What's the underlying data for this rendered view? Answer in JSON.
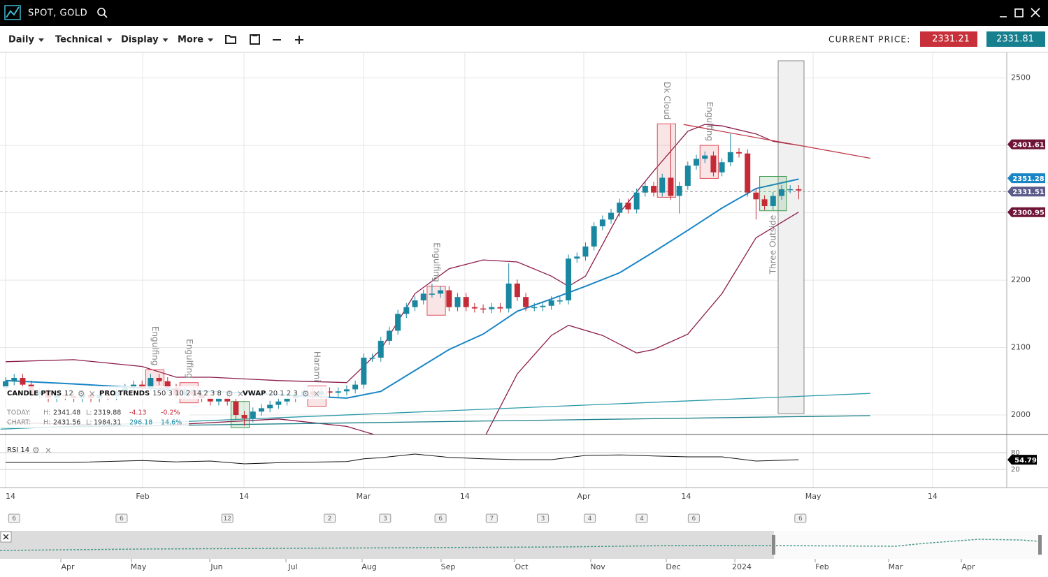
{
  "app": {
    "title": "SPOT, GOLD"
  },
  "toolbar": {
    "menus": [
      "Daily",
      "Technical",
      "Display",
      "More"
    ],
    "current_price_label": "CURRENT PRICE:",
    "bid": "2331.21",
    "ask": "2331.81"
  },
  "legend": {
    "indicators": [
      {
        "name": "CANDLE PTNS",
        "params": "12"
      },
      {
        "name": "PRO TRENDS",
        "params": "150 3 10 2 14 2 3 8"
      },
      {
        "name": "VWAP",
        "params": "20 1 2 3"
      }
    ],
    "h_label": "H:",
    "l_label": "L:",
    "stats": [
      {
        "label": "TODAY:",
        "h": "2341.48",
        "l": "2319.88",
        "chg": "-4.13",
        "pct": "-0.2%"
      },
      {
        "label": "CHART:",
        "h": "2431.56",
        "l": "1984.31",
        "chg": "296.18",
        "pct": "14.6%"
      }
    ]
  },
  "chart_data": {
    "type": "candlestick",
    "open": [
      2040,
      2050,
      2055,
      2045,
      2030,
      2035,
      2025,
      2030,
      2028,
      2025,
      2030,
      2025,
      2030,
      2028,
      2035,
      2040,
      2045,
      2040,
      2055,
      2050,
      2040,
      2030,
      2035,
      2030,
      2025,
      2020,
      2025,
      2020,
      2000,
      1995,
      2005,
      2010,
      2015,
      2020,
      2025,
      2030,
      2035,
      2030,
      2035,
      2033,
      2035,
      2038,
      2045,
      2085,
      2085,
      2110,
      2125,
      2150,
      2160,
      2170,
      2180,
      2180,
      2185,
      2160,
      2175,
      2160,
      2158,
      2157,
      2160,
      2158,
      2195,
      2175,
      2160,
      2160,
      2162,
      2170,
      2170,
      2232,
      2235,
      2250,
      2280,
      2290,
      2300,
      2315,
      2305,
      2330,
      2340,
      2330,
      2352,
      2325,
      2340,
      2370,
      2380,
      2385,
      2360,
      2375,
      2390,
      2388,
      2330,
      2320,
      2310,
      2325,
      2335,
      2335
    ],
    "high": [
      2056,
      2061,
      2061,
      2051,
      2041,
      2041,
      2036,
      2036,
      2034,
      2036,
      2036,
      2036,
      2036,
      2041,
      2046,
      2051,
      2051,
      2061,
      2061,
      2056,
      2046,
      2041,
      2041,
      2036,
      2031,
      2031,
      2031,
      2026,
      2006,
      2011,
      2016,
      2021,
      2026,
      2031,
      2036,
      2041,
      2041,
      2041,
      2041,
      2041,
      2044,
      2051,
      2091,
      2091,
      2116,
      2131,
      2156,
      2166,
      2176,
      2186,
      2195,
      2191,
      2191,
      2181,
      2181,
      2166,
      2164,
      2166,
      2166,
      2225,
      2201,
      2181,
      2166,
      2168,
      2176,
      2176,
      2238,
      2241,
      2256,
      2286,
      2296,
      2306,
      2321,
      2321,
      2336,
      2346,
      2346,
      2358,
      2431,
      2346,
      2376,
      2386,
      2391,
      2391,
      2381,
      2417,
      2396,
      2394,
      2336,
      2326,
      2331,
      2341,
      2341,
      2341
    ],
    "low": [
      2034,
      2044,
      2039,
      2024,
      2024,
      2019,
      2019,
      2022,
      2019,
      2019,
      2019,
      2019,
      2022,
      2022,
      2029,
      2034,
      2034,
      2034,
      2044,
      2034,
      2024,
      2024,
      2024,
      2019,
      2014,
      2014,
      2014,
      1994,
      1984,
      1989,
      1999,
      2004,
      2009,
      2014,
      2019,
      2024,
      2024,
      2024,
      2027,
      2027,
      2029,
      2032,
      2039,
      2079,
      2079,
      2104,
      2119,
      2144,
      2154,
      2164,
      2174,
      2174,
      2154,
      2154,
      2154,
      2152,
      2151,
      2151,
      2152,
      2152,
      2169,
      2154,
      2154,
      2154,
      2156,
      2164,
      2164,
      2226,
      2229,
      2244,
      2274,
      2284,
      2294,
      2299,
      2299,
      2324,
      2324,
      2324,
      2319,
      2299,
      2334,
      2364,
      2374,
      2354,
      2354,
      2369,
      2382,
      2324,
      2290,
      2304,
      2304,
      2319,
      2329,
      2320
    ],
    "close": [
      2050,
      2055,
      2045,
      2030,
      2035,
      2025,
      2030,
      2028,
      2025,
      2030,
      2025,
      2030,
      2028,
      2035,
      2040,
      2045,
      2040,
      2055,
      2050,
      2040,
      2030,
      2035,
      2030,
      2025,
      2020,
      2025,
      2020,
      2000,
      1995,
      2005,
      2010,
      2015,
      2020,
      2025,
      2030,
      2035,
      2030,
      2035,
      2033,
      2035,
      2038,
      2045,
      2085,
      2085,
      2110,
      2125,
      2150,
      2160,
      2170,
      2180,
      2180,
      2185,
      2160,
      2175,
      2160,
      2158,
      2157,
      2160,
      2158,
      2195,
      2175,
      2160,
      2160,
      2162,
      2170,
      2170,
      2232,
      2235,
      2250,
      2280,
      2290,
      2300,
      2315,
      2305,
      2330,
      2340,
      2330,
      2352,
      2325,
      2340,
      2370,
      2380,
      2385,
      2360,
      2375,
      2390,
      2388,
      2330,
      2320,
      2310,
      2325,
      2335,
      2335,
      2333
    ],
    "up_color": "#1a87a0",
    "down_color": "#c42b37",
    "lines": [
      {
        "color": "#1a85c5",
        "x": [
          0,
          8,
          16,
          24,
          32,
          40,
          44,
          48,
          52,
          56,
          60,
          64,
          68,
          72,
          76,
          80,
          84,
          88,
          93
        ],
        "values": [
          2051,
          2046,
          2040,
          2035,
          2030,
          2025,
          2035,
          2066,
          2097,
          2120,
          2154,
          2172,
          2191,
          2211,
          2242,
          2274,
          2307,
          2336,
          2350
        ]
      },
      {
        "color": "#8b1a4a",
        "x": [
          0,
          8,
          16,
          20,
          24,
          32,
          40,
          44,
          48,
          52,
          56,
          60,
          64,
          66,
          68,
          72,
          76,
          80,
          82,
          84,
          88,
          90,
          93
        ],
        "values": [
          2079,
          2082,
          2072,
          2056,
          2056,
          2051,
          2048,
          2097,
          2180,
          2217,
          2230,
          2227,
          2206,
          2191,
          2206,
          2300,
          2362,
          2421,
          2431,
          2429,
          2417,
          2406,
          2400
        ]
      },
      {
        "color": "#8b1a4a",
        "x": [
          0,
          16,
          32,
          40,
          44,
          52,
          56,
          60,
          64,
          66,
          70,
          74,
          76,
          80,
          84,
          88,
          93
        ],
        "values": [
          1989,
          1983,
          1994,
          1983,
          1968,
          1942,
          1963,
          2061,
          2118,
          2133,
          2118,
          2092,
          2097,
          2120,
          2180,
          2263,
          2301
        ]
      },
      {
        "color": "#c0394a",
        "x": [
          79.5,
          101.4
        ],
        "values": [
          2431,
          2381
        ]
      },
      {
        "color": "#2a9aa8",
        "x": [
          -0.6,
          101.4
        ],
        "values": [
          1979,
          2032
        ]
      },
      {
        "color": "#1a7f8a",
        "x": [
          -0.6,
          101.4
        ],
        "values": [
          1981,
          1999
        ]
      }
    ],
    "patterns": [
      {
        "label": "Engulfing",
        "start": 17,
        "end": 18,
        "low": 2040,
        "high": 2067,
        "color": "#e0505a"
      },
      {
        "label": "Engulfing",
        "start": 21,
        "end": 22,
        "low": 2018,
        "high": 2048,
        "color": "#e0505a"
      },
      {
        "start": 27,
        "end": 28,
        "low": 1981,
        "high": 2020,
        "color": "#3a9a4a"
      },
      {
        "label": "Harami",
        "start": 36,
        "end": 37,
        "low": 2013,
        "high": 2043,
        "color": "#e0505a"
      },
      {
        "label": "Engulfing",
        "start": 50,
        "end": 51,
        "low": 2148,
        "high": 2191,
        "color": "#e0505a"
      },
      {
        "label": "Dk Cloud",
        "start": 77,
        "end": 78,
        "low": 2323,
        "high": 2432,
        "color": "#e0505a"
      },
      {
        "label": "Engulfing",
        "start": 82,
        "end": 83,
        "low": 2351,
        "high": 2400,
        "color": "#e0505a"
      },
      {
        "label": "Three Outside",
        "start": 89,
        "end": 91,
        "low": 2303,
        "high": 2354,
        "color": "#3a9a4a",
        "label_side": "below"
      }
    ],
    "price_tags": [
      {
        "value": 2401.61,
        "color": "#6e1436"
      },
      {
        "value": 2351.28,
        "color": "#1a85c5"
      },
      {
        "value": 2331.51,
        "color": "#5c5a8a"
      },
      {
        "value": 2300.95,
        "color": "#6e1436"
      }
    ],
    "xlim": [
      -0.66,
      117.4
    ],
    "xticks": [
      {
        "value": 0,
        "label": "14"
      },
      {
        "value": 16.07,
        "label": "Feb"
      },
      {
        "value": 27.95,
        "label": "14"
      },
      {
        "value": 41.97,
        "label": "Mar"
      },
      {
        "value": 53.85,
        "label": "14"
      },
      {
        "value": 67.8,
        "label": "Apr"
      },
      {
        "value": 79.8,
        "label": "14"
      },
      {
        "value": 94.7,
        "label": "May"
      },
      {
        "value": 108.7,
        "label": "14"
      }
    ],
    "ylim": [
      1971,
      2538
    ],
    "yticks": [
      2000,
      2100,
      2200,
      2300,
      2400,
      2500
    ],
    "rsi": {
      "label": "RSI 14",
      "color": "#111111",
      "ylim": [
        -45,
        145
      ],
      "yticks": [
        20,
        80
      ],
      "x": [
        0,
        8,
        16,
        20,
        24,
        28,
        32,
        40,
        42,
        44,
        48,
        52,
        56,
        60,
        64,
        68,
        72,
        76,
        80,
        84,
        88,
        93
      ],
      "values": [
        45,
        45,
        52,
        47,
        50,
        40,
        44,
        48,
        58,
        62,
        75,
        63,
        58,
        55,
        55,
        70,
        72,
        68,
        65,
        65,
        50,
        54.79
      ],
      "last": 54.79
    },
    "events": {
      "x": [
        1,
        13.6,
        26,
        38,
        44.5,
        51,
        57,
        63,
        68.5,
        74.6,
        80.7,
        93.2
      ],
      "labels": [
        "6",
        "6",
        "12",
        "2",
        "3",
        "6",
        "7",
        "3",
        "4",
        "4",
        "6",
        "6"
      ]
    }
  },
  "navigator": {
    "labels": [
      "Apr",
      "May",
      "Jun",
      "Jul",
      "Aug",
      "Sep",
      "Oct",
      "Nov",
      "Dec",
      "2024",
      "Feb",
      "Mar",
      "Apr"
    ]
  }
}
